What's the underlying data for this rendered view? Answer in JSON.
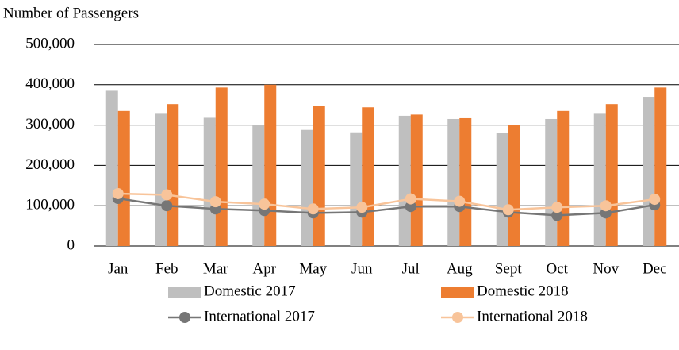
{
  "chart_data": {
    "type": "bar",
    "y_label": "Number of Passengers",
    "categories": [
      "Jan",
      "Feb",
      "Mar",
      "Apr",
      "May",
      "Jun",
      "Jul",
      "Aug",
      "Sept",
      "Oct",
      "Nov",
      "Dec"
    ],
    "series": [
      {
        "name": "Domestic 2017",
        "type": "bar",
        "color": "#bfbfbf",
        "values": [
          385000,
          328000,
          318000,
          300000,
          288000,
          282000,
          323000,
          315000,
          280000,
          315000,
          328000,
          370000
        ]
      },
      {
        "name": "Domestic 2018",
        "type": "bar",
        "color": "#ed7d31",
        "values": [
          335000,
          352000,
          393000,
          400000,
          348000,
          344000,
          326000,
          317000,
          300000,
          335000,
          352000,
          393000
        ]
      },
      {
        "name": "International 2017",
        "type": "line",
        "color": "#767676",
        "values": [
          118000,
          100000,
          92000,
          88000,
          82000,
          84000,
          98000,
          98000,
          84000,
          76000,
          82000,
          102000
        ]
      },
      {
        "name": "International 2018",
        "type": "line",
        "color": "#f8c49a",
        "values": [
          130000,
          127000,
          110000,
          104000,
          92000,
          96000,
          117000,
          111000,
          90000,
          96000,
          100000,
          116000
        ]
      }
    ],
    "ylim": [
      0,
      500000
    ],
    "yticks": [
      0,
      {
        "value": 100000,
        "label": "100,000"
      },
      {
        "value": 200000,
        "label": "200,000"
      },
      {
        "value": 300000,
        "label": "300,000"
      },
      {
        "value": 400000,
        "label": "400,000"
      },
      {
        "value": 500000,
        "label": "500,000"
      }
    ],
    "grid": true,
    "legend": "bottom"
  }
}
